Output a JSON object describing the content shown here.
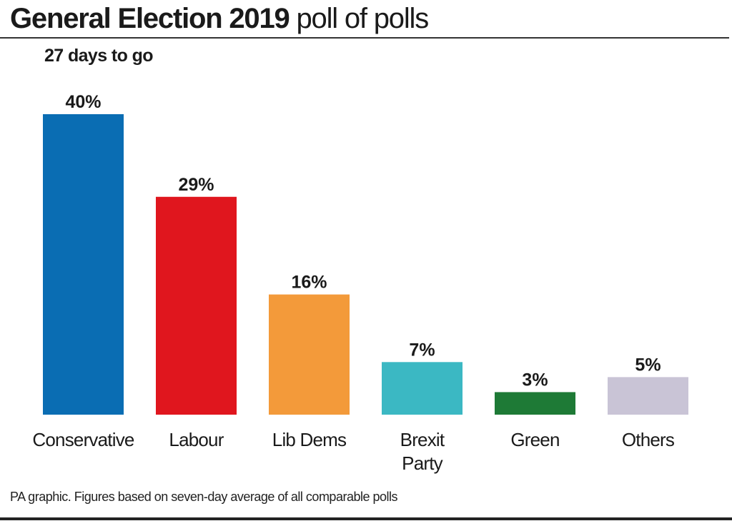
{
  "title": {
    "bold": "General Election 2019",
    "light": "poll of polls"
  },
  "subtitle": "27 days to go",
  "footnote": "PA graphic. Figures based on seven-day average of all comparable polls",
  "chart_data": {
    "type": "bar",
    "title": "General Election 2019 poll of polls",
    "subtitle": "27 days to go",
    "xlabel": "",
    "ylabel": "",
    "ylim": [
      0,
      40
    ],
    "unit": "%",
    "grid": false,
    "categories": [
      "Conservative",
      "Labour",
      "Lib Dems",
      "Brexit Party",
      "Green",
      "Others"
    ],
    "category_lines": [
      [
        "Conservative"
      ],
      [
        "Labour"
      ],
      [
        "Lib Dems"
      ],
      [
        "Brexit",
        "Party"
      ],
      [
        "Green"
      ],
      [
        "Others"
      ]
    ],
    "values": [
      40,
      29,
      16,
      7,
      3,
      5
    ],
    "data_labels": [
      "40%",
      "29%",
      "16%",
      "7%",
      "3%",
      "5%"
    ],
    "colors": [
      "#0a6db3",
      "#e0161e",
      "#f39a3a",
      "#3bb8c3",
      "#1e7a36",
      "#c9c4d6"
    ]
  }
}
